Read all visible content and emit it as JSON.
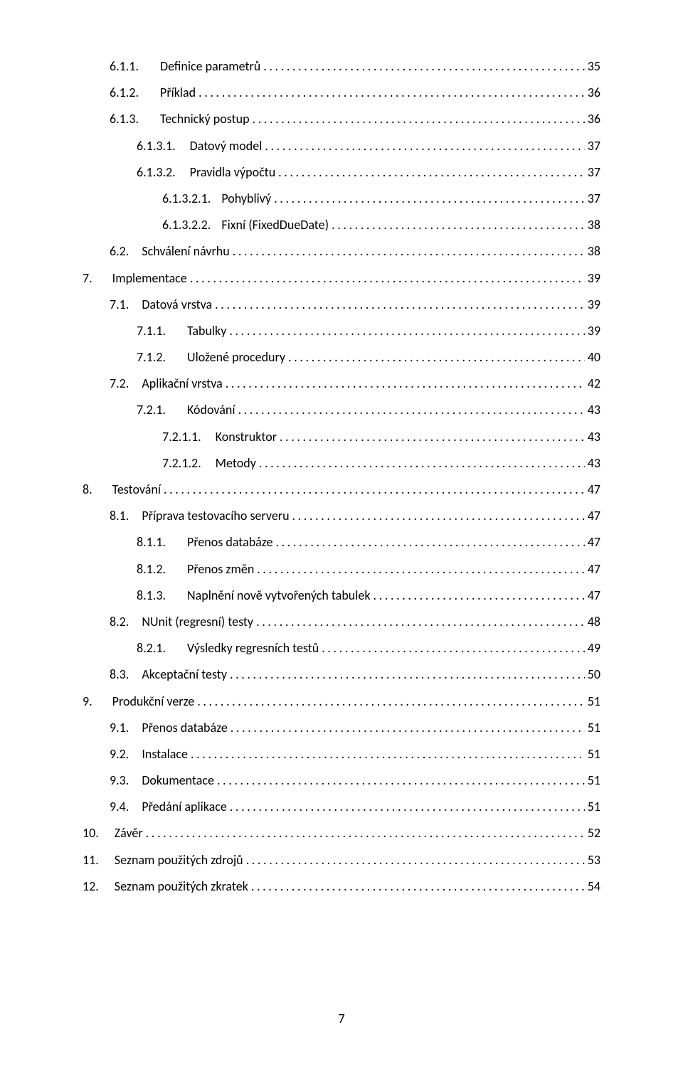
{
  "page_number": "7",
  "text_color": "#000000",
  "background_color": "#ffffff",
  "font_family": "Calibri",
  "font_size_pt": 12,
  "toc": [
    {
      "indent": 1,
      "number": "6.1.1.",
      "gap": 30,
      "title": "Definice parametrů",
      "page": "35"
    },
    {
      "indent": 1,
      "number": "6.1.2.",
      "gap": 30,
      "title": "Příklad",
      "page": "36"
    },
    {
      "indent": 1,
      "number": "6.1.3.",
      "gap": 30,
      "title": "Technický postup",
      "page": "36"
    },
    {
      "indent": 2,
      "number": "6.1.3.1.",
      "gap": 20,
      "title": "Datový model",
      "page": "37"
    },
    {
      "indent": 2,
      "number": "6.1.3.2.",
      "gap": 20,
      "title": "Pravidla výpočtu",
      "page": "37"
    },
    {
      "indent": 3,
      "number": "6.1.3.2.1.",
      "gap": 15,
      "title": "Pohyblivý",
      "page": "37"
    },
    {
      "indent": 3,
      "number": "6.1.3.2.2.",
      "gap": 15,
      "title": "Fixní (FixedDueDate)",
      "page": "38"
    },
    {
      "indent": 1,
      "number": "6.2.",
      "gap": 18,
      "title": "Schválení návrhu",
      "page": "38"
    },
    {
      "indent": 0,
      "number": "7.",
      "gap": 28,
      "title": "Implementace",
      "page": "39"
    },
    {
      "indent": 1,
      "number": "7.1.",
      "gap": 18,
      "title": "Datová vrstva",
      "page": "39"
    },
    {
      "indent": 2,
      "number": "7.1.1.",
      "gap": 30,
      "title": "Tabulky",
      "page": "39"
    },
    {
      "indent": 2,
      "number": "7.1.2.",
      "gap": 30,
      "title": "Uložené procedury",
      "page": "40"
    },
    {
      "indent": 1,
      "number": "7.2.",
      "gap": 18,
      "title": "Aplikační vrstva",
      "page": "42"
    },
    {
      "indent": 2,
      "number": "7.2.1.",
      "gap": 30,
      "title": "Kódování",
      "page": "43"
    },
    {
      "indent": 3,
      "number": "7.2.1.1.",
      "gap": 20,
      "title": "Konstruktor",
      "page": "43"
    },
    {
      "indent": 3,
      "number": "7.2.1.2.",
      "gap": 20,
      "title": "Metody",
      "page": "43"
    },
    {
      "indent": 0,
      "number": "8.",
      "gap": 28,
      "title": "Testování",
      "page": "47"
    },
    {
      "indent": 1,
      "number": "8.1.",
      "gap": 18,
      "title": "Příprava testovacího serveru",
      "page": "47"
    },
    {
      "indent": 2,
      "number": "8.1.1.",
      "gap": 30,
      "title": "Přenos databáze",
      "page": "47"
    },
    {
      "indent": 2,
      "number": "8.1.2.",
      "gap": 30,
      "title": "Přenos změn",
      "page": "47"
    },
    {
      "indent": 2,
      "number": "8.1.3.",
      "gap": 30,
      "title": "Naplnění nově vytvořených tabulek",
      "page": "47"
    },
    {
      "indent": 1,
      "number": "8.2.",
      "gap": 18,
      "title": "NUnit (regresní) testy",
      "page": "48"
    },
    {
      "indent": 2,
      "number": "8.2.1.",
      "gap": 30,
      "title": "Výsledky regresních testů",
      "page": "49"
    },
    {
      "indent": 1,
      "number": "8.3.",
      "gap": 18,
      "title": "Akceptační testy",
      "page": "50"
    },
    {
      "indent": 0,
      "number": "9.",
      "gap": 28,
      "title": "Produkční verze",
      "page": "51"
    },
    {
      "indent": 1,
      "number": "9.1.",
      "gap": 18,
      "title": "Přenos databáze",
      "page": "51"
    },
    {
      "indent": 1,
      "number": "9.2.",
      "gap": 18,
      "title": "Instalace",
      "page": "51"
    },
    {
      "indent": 1,
      "number": "9.3.",
      "gap": 18,
      "title": "Dokumentace",
      "page": "51"
    },
    {
      "indent": 1,
      "number": "9.4.",
      "gap": 18,
      "title": "Předání aplikace",
      "page": "51"
    },
    {
      "indent": 0,
      "number": "10.",
      "gap": 22,
      "title": "Závěr",
      "page": "52"
    },
    {
      "indent": 0,
      "number": "11.",
      "gap": 22,
      "title": "Seznam použitých zdrojů",
      "page": "53"
    },
    {
      "indent": 0,
      "number": "12.",
      "gap": 22,
      "title": "Seznam použitých zkratek",
      "page": "54"
    }
  ]
}
